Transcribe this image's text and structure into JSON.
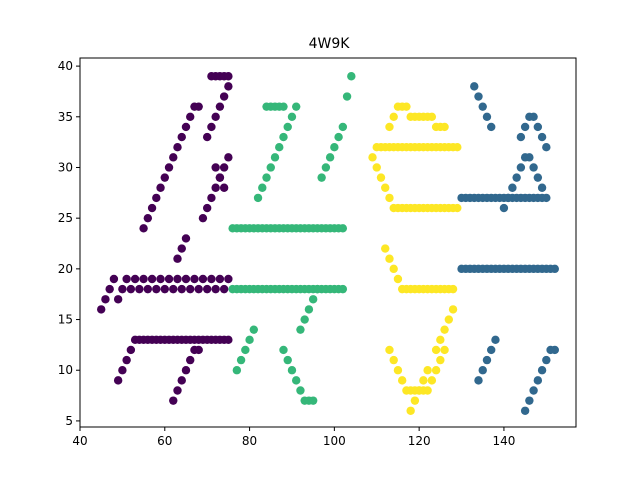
{
  "chart_data": {
    "type": "scatter",
    "title": "4W9K",
    "xlabel": "",
    "ylabel": "",
    "xlim": [
      40,
      157
    ],
    "ylim": [
      4.4,
      40.8
    ],
    "xticks": [
      40,
      60,
      80,
      100,
      120,
      140
    ],
    "yticks": [
      5,
      10,
      15,
      20,
      25,
      30,
      35,
      40
    ],
    "grid": false,
    "series": [
      {
        "color": "#440154",
        "x": [
          49,
          50,
          51,
          52,
          53,
          54,
          55,
          56,
          57,
          58,
          59,
          60,
          61,
          62,
          63,
          64,
          65,
          66,
          67,
          68,
          69,
          70,
          71,
          72,
          73,
          74,
          75,
          45,
          46,
          47,
          48,
          49,
          50,
          51,
          52,
          53,
          54,
          55,
          56,
          57,
          58,
          59,
          60,
          61,
          62,
          63,
          64,
          65,
          66,
          67,
          68,
          69,
          70,
          71,
          72,
          73,
          74,
          75,
          62,
          63,
          64,
          65,
          66,
          67,
          68,
          55,
          56,
          57,
          58,
          59,
          60,
          61,
          62,
          63,
          64,
          65,
          66,
          67,
          68,
          63,
          64,
          65,
          69,
          70,
          71,
          72,
          73,
          74,
          75,
          70,
          71,
          72,
          73,
          74,
          75,
          71,
          72,
          73,
          74,
          75,
          72,
          73,
          74
        ],
        "y": [
          9,
          10,
          11,
          12,
          13,
          13,
          13,
          13,
          13,
          13,
          13,
          13,
          13,
          13,
          13,
          13,
          13,
          13,
          13,
          13,
          13,
          13,
          13,
          13,
          13,
          13,
          13,
          16,
          17,
          18,
          19,
          17,
          18,
          19,
          18,
          19,
          18,
          19,
          18,
          19,
          18,
          19,
          18,
          19,
          18,
          19,
          18,
          19,
          18,
          19,
          18,
          19,
          18,
          19,
          18,
          19,
          18,
          19,
          7,
          8,
          9,
          10,
          11,
          12,
          12,
          24,
          25,
          26,
          27,
          28,
          29,
          30,
          31,
          32,
          33,
          34,
          35,
          36,
          36,
          21,
          22,
          23,
          25,
          26,
          27,
          28,
          29,
          30,
          31,
          33,
          34,
          35,
          36,
          37,
          38,
          39,
          39,
          39,
          39,
          39,
          30,
          29,
          28
        ]
      },
      {
        "color": "#35b779",
        "x": [
          76,
          77,
          78,
          79,
          80,
          81,
          82,
          83,
          84,
          85,
          86,
          87,
          88,
          89,
          90,
          91,
          92,
          93,
          94,
          95,
          96,
          97,
          98,
          99,
          100,
          101,
          102,
          76,
          77,
          78,
          79,
          80,
          81,
          82,
          83,
          84,
          85,
          86,
          87,
          88,
          89,
          90,
          91,
          92,
          93,
          94,
          95,
          96,
          97,
          98,
          99,
          100,
          101,
          102,
          77,
          78,
          79,
          80,
          81,
          88,
          89,
          90,
          91,
          92,
          93,
          94,
          95,
          92,
          93,
          94,
          95,
          96,
          82,
          83,
          84,
          85,
          86,
          87,
          88,
          89,
          90,
          91,
          84,
          85,
          86,
          87,
          88,
          97,
          98,
          99,
          100,
          101,
          102,
          103,
          104
        ],
        "y": [
          18,
          18,
          18,
          18,
          18,
          18,
          18,
          18,
          18,
          18,
          18,
          18,
          18,
          18,
          18,
          18,
          18,
          18,
          18,
          18,
          18,
          18,
          18,
          18,
          18,
          18,
          18,
          24,
          24,
          24,
          24,
          24,
          24,
          24,
          24,
          24,
          24,
          24,
          24,
          24,
          24,
          24,
          24,
          24,
          24,
          24,
          24,
          24,
          24,
          24,
          24,
          24,
          24,
          24,
          10,
          11,
          12,
          13,
          14,
          12,
          11,
          10,
          9,
          8,
          7,
          7,
          7,
          14,
          15,
          16,
          17,
          18,
          27,
          28,
          29,
          30,
          31,
          32,
          33,
          34,
          35,
          36,
          36,
          36,
          36,
          36,
          36,
          29,
          30,
          31,
          32,
          33,
          34,
          37,
          39
        ]
      },
      {
        "color": "#fde725",
        "x": [
          109,
          110,
          111,
          112,
          113,
          114,
          115,
          116,
          117,
          118,
          119,
          120,
          121,
          122,
          123,
          124,
          125,
          126,
          127,
          128,
          129,
          110,
          111,
          112,
          113,
          114,
          115,
          116,
          117,
          118,
          119,
          120,
          121,
          122,
          123,
          124,
          125,
          126,
          127,
          128,
          129,
          112,
          113,
          114,
          115,
          116,
          117,
          118,
          119,
          120,
          121,
          122,
          123,
          124,
          125,
          126,
          127,
          128,
          113,
          114,
          115,
          116,
          117,
          118,
          119,
          120,
          121,
          122,
          123,
          124,
          125,
          126,
          118,
          119,
          120,
          121,
          122,
          124,
          125,
          126,
          127,
          128,
          113,
          114,
          115,
          116,
          117,
          118,
          119,
          120,
          121,
          122,
          123,
          124,
          125,
          126
        ],
        "y": [
          31,
          30,
          29,
          28,
          27,
          26,
          26,
          26,
          26,
          26,
          26,
          26,
          26,
          26,
          26,
          26,
          26,
          26,
          26,
          26,
          26,
          32,
          32,
          32,
          32,
          32,
          32,
          32,
          32,
          32,
          32,
          32,
          32,
          32,
          32,
          32,
          32,
          32,
          32,
          32,
          32,
          22,
          21,
          20,
          19,
          18,
          18,
          18,
          18,
          18,
          18,
          18,
          18,
          18,
          18,
          18,
          18,
          18,
          34,
          35,
          36,
          36,
          36,
          35,
          35,
          35,
          35,
          35,
          35,
          34,
          34,
          34,
          6,
          7,
          8,
          9,
          10,
          12,
          13,
          14,
          15,
          16,
          12,
          11,
          10,
          9,
          8,
          8,
          8,
          8,
          8,
          8,
          9,
          10,
          11,
          12
        ]
      },
      {
        "color": "#31688e",
        "x": [
          130,
          131,
          132,
          133,
          134,
          135,
          136,
          137,
          138,
          139,
          140,
          141,
          142,
          143,
          144,
          145,
          146,
          147,
          148,
          149,
          150,
          151,
          152,
          130,
          131,
          132,
          133,
          134,
          135,
          136,
          137,
          138,
          139,
          140,
          141,
          142,
          143,
          144,
          145,
          146,
          147,
          148,
          149,
          133,
          134,
          135,
          136,
          137,
          134,
          135,
          136,
          137,
          138,
          144,
          145,
          146,
          147,
          148,
          149,
          150,
          145,
          146,
          147,
          148,
          149,
          150,
          151,
          152,
          140,
          141,
          142,
          143,
          144,
          145,
          146,
          147,
          148,
          149,
          150
        ],
        "y": [
          20,
          20,
          20,
          20,
          20,
          20,
          20,
          20,
          20,
          20,
          20,
          20,
          20,
          20,
          20,
          20,
          20,
          20,
          20,
          20,
          20,
          20,
          20,
          27,
          27,
          27,
          27,
          27,
          27,
          27,
          27,
          27,
          27,
          27,
          27,
          27,
          27,
          27,
          27,
          27,
          27,
          27,
          27,
          38,
          37,
          36,
          35,
          34,
          9,
          10,
          11,
          12,
          13,
          33,
          34,
          35,
          35,
          34,
          33,
          32,
          6,
          7,
          8,
          9,
          10,
          11,
          12,
          12,
          26,
          27,
          28,
          29,
          30,
          31,
          31,
          30,
          29,
          28,
          27
        ]
      }
    ]
  }
}
